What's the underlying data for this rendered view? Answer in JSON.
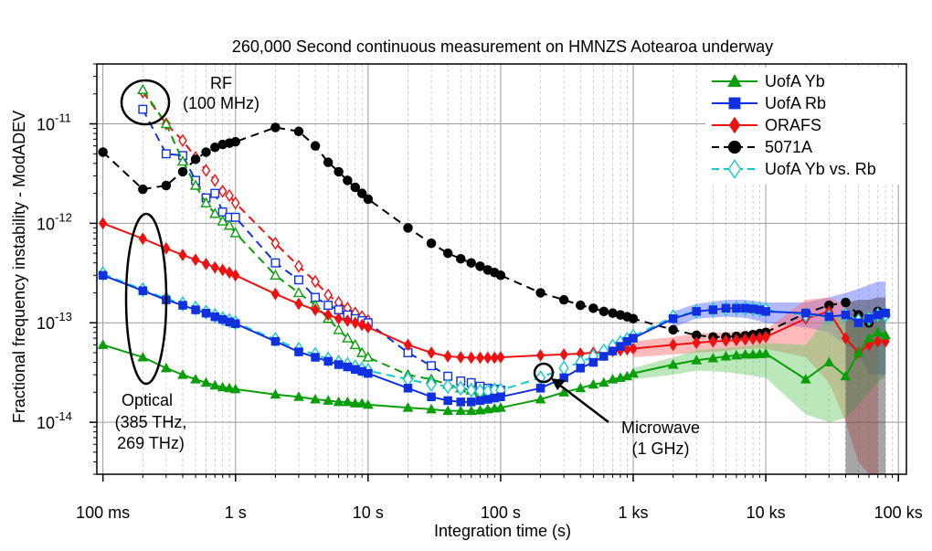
{
  "chart_data": {
    "type": "line",
    "title": "260,000 Second continuous measurement on HMNZS Aotearoa underway",
    "xlabel": "Integration time (s)",
    "ylabel": "Fractional frequency instability - ModADEV",
    "xscale": "log",
    "yscale": "log",
    "xlim": [
      0.09,
      115000
    ],
    "ylim": [
      3e-15,
      4e-11
    ],
    "x_ticks": [
      {
        "value": 0.1,
        "label": "100 ms"
      },
      {
        "value": 1,
        "label": "1 s"
      },
      {
        "value": 10,
        "label": "10 s"
      },
      {
        "value": 100,
        "label": "100 s"
      },
      {
        "value": 1000,
        "label": "1 ks"
      },
      {
        "value": 10000,
        "label": "10 ks"
      },
      {
        "value": 100000,
        "label": "100 ks"
      }
    ],
    "y_ticks": [
      {
        "value": 1e-14,
        "base": "10",
        "exp": "-14"
      },
      {
        "value": 1e-13,
        "base": "10",
        "exp": "-13"
      },
      {
        "value": 1e-12,
        "base": "10",
        "exp": "-12"
      },
      {
        "value": 1e-11,
        "base": "10",
        "exp": "-11"
      }
    ],
    "grid": true,
    "legend_position": "top-right",
    "legend": [
      "UofA Yb",
      "UofA Rb",
      "ORAFS",
      "5071A",
      "UofA Yb vs. Rb"
    ],
    "series": [
      {
        "name": "UofA Yb",
        "color": "#0a9e0a",
        "marker": "triangle",
        "line": "solid",
        "x": [
          0.1,
          0.2,
          0.3,
          0.4,
          0.5,
          0.6,
          0.7,
          0.8,
          0.9,
          1,
          2,
          3,
          4,
          5,
          6,
          7,
          8,
          9,
          10,
          20,
          30,
          40,
          50,
          60,
          70,
          80,
          90,
          100,
          200,
          300,
          400,
          500,
          600,
          700,
          800,
          900,
          1000,
          2000,
          3000,
          4000,
          5000,
          6000,
          7000,
          8000,
          9000,
          10000,
          20000,
          30000,
          40000,
          50000,
          60000,
          70000,
          80000
        ],
        "y": [
          6e-14,
          4.5e-14,
          3.5e-14,
          3e-14,
          2.7e-14,
          2.5e-14,
          2.35e-14,
          2.25e-14,
          2.2e-14,
          2.15e-14,
          1.9e-14,
          1.8e-14,
          1.7e-14,
          1.65e-14,
          1.6e-14,
          1.6e-14,
          1.55e-14,
          1.55e-14,
          1.5e-14,
          1.4e-14,
          1.35e-14,
          1.3e-14,
          1.3e-14,
          1.3e-14,
          1.32e-14,
          1.35e-14,
          1.38e-14,
          1.4e-14,
          1.7e-14,
          2e-14,
          2.2e-14,
          2.4e-14,
          2.5e-14,
          2.7e-14,
          2.8e-14,
          2.9e-14,
          3.1e-14,
          3.8e-14,
          4.2e-14,
          4.4e-14,
          4.6e-14,
          4.7e-14,
          4.8e-14,
          4.8e-14,
          4.85e-14,
          4.9e-14,
          2.7e-14,
          4e-14,
          2.9e-14,
          5e-14,
          7e-14,
          8e-14,
          7.5e-14
        ]
      },
      {
        "name": "UofA Rb",
        "color": "#1030e0",
        "marker": "square",
        "line": "solid",
        "x": [
          0.1,
          0.2,
          0.3,
          0.4,
          0.5,
          0.6,
          0.7,
          0.8,
          0.9,
          1,
          2,
          3,
          4,
          5,
          6,
          7,
          8,
          9,
          10,
          20,
          30,
          40,
          50,
          60,
          70,
          80,
          90,
          100,
          200,
          300,
          400,
          500,
          600,
          700,
          800,
          900,
          1000,
          2000,
          3000,
          4000,
          5000,
          6000,
          7000,
          8000,
          9000,
          10000,
          20000,
          30000,
          40000,
          50000,
          60000,
          70000,
          80000
        ],
        "y": [
          3e-13,
          2.1e-13,
          1.7e-13,
          1.5e-13,
          1.35e-13,
          1.25e-13,
          1.15e-13,
          1.08e-13,
          1.02e-13,
          9.8e-14,
          6.5e-14,
          5.1e-14,
          4.5e-14,
          4.1e-14,
          3.8e-14,
          3.6e-14,
          3.4e-14,
          3.25e-14,
          3.1e-14,
          2.2e-14,
          1.8e-14,
          1.65e-14,
          1.6e-14,
          1.6e-14,
          1.65e-14,
          1.7e-14,
          1.75e-14,
          1.8e-14,
          2.2e-14,
          2.8e-14,
          3.5e-14,
          4e-14,
          4.6e-14,
          5.2e-14,
          5.8e-14,
          6.5e-14,
          7e-14,
          1.1e-13,
          1.3e-13,
          1.35e-13,
          1.4e-13,
          1.4e-13,
          1.4e-13,
          1.38e-13,
          1.35e-13,
          1.3e-13,
          1.25e-13,
          1.15e-13,
          1.2e-13,
          1e-13,
          1.1e-13,
          1.2e-13,
          1.25e-13
        ]
      },
      {
        "name": "ORAFS",
        "color": "#ee1111",
        "marker": "diamond",
        "line": "solid",
        "x": [
          0.1,
          0.2,
          0.3,
          0.4,
          0.5,
          0.6,
          0.7,
          0.8,
          0.9,
          1,
          2,
          3,
          4,
          5,
          6,
          7,
          8,
          9,
          10,
          20,
          30,
          40,
          50,
          60,
          70,
          80,
          90,
          100,
          200,
          300,
          400,
          500,
          600,
          700,
          800,
          900,
          1000,
          2000,
          3000,
          4000,
          5000,
          6000,
          7000,
          8000,
          9000,
          10000,
          20000,
          30000,
          40000,
          50000,
          60000,
          70000,
          80000
        ],
        "y": [
          1e-12,
          7e-13,
          5.6e-13,
          4.8e-13,
          4.3e-13,
          3.9e-13,
          3.6e-13,
          3.4e-13,
          3.2e-13,
          3e-13,
          1.95e-13,
          1.55e-13,
          1.35e-13,
          1.2e-13,
          1.1e-13,
          1.05e-13,
          1e-13,
          9.5e-14,
          9e-14,
          6e-14,
          5e-14,
          4.6e-14,
          4.5e-14,
          4.45e-14,
          4.45e-14,
          4.45e-14,
          4.45e-14,
          4.5e-14,
          4.7e-14,
          4.8e-14,
          4.9e-14,
          5e-14,
          5.1e-14,
          5.2e-14,
          5.3e-14,
          5.4e-14,
          5.5e-14,
          6e-14,
          6.3e-14,
          6.5e-14,
          6.6e-14,
          6.7e-14,
          6.8e-14,
          6.9e-14,
          7e-14,
          7.2e-14,
          1.1e-13,
          1.3e-13,
          7e-14,
          5e-14,
          6e-14,
          6.5e-14,
          6.5e-14
        ]
      },
      {
        "name": "5071A",
        "color": "#000000",
        "marker": "circle",
        "line": "dashed",
        "x": [
          0.1,
          0.2,
          0.3,
          0.4,
          0.5,
          0.6,
          0.7,
          0.8,
          0.9,
          1,
          2,
          3,
          4,
          5,
          6,
          7,
          8,
          9,
          10,
          20,
          30,
          40,
          50,
          60,
          70,
          80,
          90,
          100,
          200,
          300,
          400,
          500,
          600,
          700,
          800,
          900,
          1000,
          2000,
          3000,
          4000,
          5000,
          6000,
          7000,
          8000,
          9000,
          10000,
          20000,
          30000,
          40000,
          50000,
          60000,
          70000,
          80000
        ],
        "y": [
          5.2e-12,
          2.2e-12,
          2.4e-12,
          3.3e-12,
          4.4e-12,
          5.2e-12,
          5.8e-12,
          6.2e-12,
          6.4e-12,
          6.6e-12,
          9.2e-12,
          8.4e-12,
          6e-12,
          4.1e-12,
          3.3e-12,
          2.7e-12,
          2.3e-12,
          2e-12,
          1.75e-12,
          9e-13,
          6.3e-13,
          5e-13,
          4.4e-13,
          4e-13,
          3.7e-13,
          3.4e-13,
          3.2e-13,
          3e-13,
          2e-13,
          1.7e-13,
          1.5e-13,
          1.4e-13,
          1.3e-13,
          1.25e-13,
          1.2e-13,
          1.15e-13,
          1.1e-13,
          8.5e-14,
          7.5e-14,
          7.2e-14,
          7.2e-14,
          7.3e-14,
          7.4e-14,
          7.6e-14,
          7.8e-14,
          8e-14,
          1.25e-13,
          1.5e-13,
          1.6e-13,
          1.2e-13,
          1e-13,
          1.3e-13,
          1.2e-13
        ]
      },
      {
        "name": "UofA Yb vs. Rb",
        "color": "#12c8d0",
        "marker": "diamond-open",
        "line": "dashed",
        "x": [
          0.1,
          0.2,
          0.3,
          0.4,
          0.5,
          0.6,
          0.7,
          0.8,
          0.9,
          1,
          2,
          3,
          4,
          5,
          6,
          7,
          8,
          9,
          10,
          20,
          30,
          40,
          50,
          60,
          70,
          80,
          90,
          100,
          200,
          300,
          400,
          500,
          600,
          700,
          800,
          900,
          1000,
          2000,
          3000,
          4000,
          5000,
          6000,
          7000,
          8000,
          9000,
          10000,
          20000,
          30000,
          40000,
          50000,
          60000,
          70000,
          80000
        ],
        "y": [
          3.1e-13,
          2.15e-13,
          1.75e-13,
          1.55e-13,
          1.4e-13,
          1.28e-13,
          1.18e-13,
          1.1e-13,
          1.05e-13,
          1e-13,
          6.8e-14,
          5.4e-14,
          4.8e-14,
          4.3e-14,
          4e-14,
          3.8e-14,
          3.6e-14,
          3.4e-14,
          3.3e-14,
          2.7e-14,
          2.4e-14,
          2.3e-14,
          2.2e-14,
          2.1e-14,
          2.05e-14,
          2.05e-14,
          2.1e-14,
          2.1e-14,
          2.8e-14,
          3.5e-14,
          4e-14,
          4.6e-14,
          5.2e-14,
          5.8e-14,
          6.3e-14,
          6.8e-14,
          7.3e-14,
          1.15e-13,
          1.3e-13,
          1.35e-13,
          1.38e-13,
          1.4e-13,
          1.4e-13,
          1.38e-13,
          1.36e-13,
          1.35e-13,
          1.2e-13,
          1.15e-13,
          1.2e-13,
          1.05e-13,
          1.1e-13,
          1.2e-13,
          1.2e-13
        ]
      },
      {
        "name": "UofA Yb (dashed)",
        "color": "#0a9e0a",
        "marker": "triangle-open",
        "line": "dashed",
        "in_legend": false,
        "x": [
          0.2,
          0.3,
          0.4,
          0.5,
          0.6,
          0.7,
          0.8,
          0.9,
          1,
          2,
          3,
          4,
          5,
          6,
          7,
          8,
          9,
          10,
          20,
          30,
          40,
          50,
          60,
          70,
          80,
          90,
          100
        ],
        "y": [
          2.2e-11,
          1e-11,
          4.2e-12,
          2.4e-12,
          1.6e-12,
          1.25e-12,
          1.05e-12,
          9.5e-13,
          8e-13,
          3e-13,
          2e-13,
          1.5e-13,
          1.1e-13,
          8.5e-14,
          7e-14,
          6e-14,
          5e-14,
          4.5e-14,
          3e-14,
          2.7e-14,
          2.4e-14,
          2.2e-14,
          2.1e-14,
          2e-14,
          2e-14,
          2e-14,
          2e-14
        ]
      },
      {
        "name": "UofA Rb (dashed)",
        "color": "#1030e0",
        "marker": "square-open",
        "line": "dashed",
        "in_legend": false,
        "x": [
          0.2,
          0.3,
          0.4,
          0.5,
          0.6,
          0.7,
          0.8,
          0.9,
          1,
          2,
          3,
          4,
          5,
          6,
          7,
          8,
          9,
          10,
          20,
          30,
          40,
          50,
          60,
          70,
          80,
          90,
          100
        ],
        "y": [
          1.4e-11,
          5e-12,
          4.8e-12,
          2.7e-12,
          1.8e-12,
          2e-12,
          1.3e-12,
          1.15e-12,
          1.15e-12,
          4e-13,
          2.7e-13,
          1.8e-13,
          1.5e-13,
          1.35e-13,
          1.2e-13,
          1.1e-13,
          1.05e-13,
          1e-13,
          5e-14,
          3.7e-14,
          2.9e-14,
          2.6e-14,
          2.5e-14,
          2.3e-14,
          2.2e-14,
          2.15e-14,
          2.1e-14
        ]
      },
      {
        "name": "ORAFS (dashed)",
        "color": "#ee1111",
        "marker": "diamond-open",
        "line": "dashed",
        "in_legend": false,
        "x": [
          0.2,
          0.3,
          0.4,
          0.5,
          0.6,
          0.7,
          0.8,
          0.9,
          1,
          2,
          3,
          4,
          5,
          6,
          7,
          8,
          9,
          10
        ],
        "y": [
          2.1e-11,
          1e-11,
          6.8e-12,
          4.6e-12,
          3.4e-12,
          2.7e-12,
          2.1e-12,
          1.9e-12,
          1.6e-12,
          6.3e-13,
          3.7e-13,
          2.6e-13,
          1.9e-13,
          1.6e-13,
          1.4e-13,
          1.25e-13,
          1.15e-13,
          1.05e-13
        ]
      }
    ],
    "bands": [
      {
        "name": "UofA Rb",
        "color": "#5566ff",
        "x": [
          2000,
          3000,
          5000,
          7000,
          10000,
          20000,
          30000,
          40000,
          50000,
          60000,
          70000,
          80000
        ],
        "lo": [
          9e-14,
          1.1e-13,
          1.15e-13,
          1.12e-13,
          1e-13,
          9e-14,
          8e-14,
          6e-14,
          5e-14,
          3e-14,
          3e-14,
          3e-14
        ],
        "hi": [
          1.3e-13,
          1.55e-13,
          1.7e-13,
          1.7e-13,
          1.6e-13,
          1.6e-13,
          1.8e-13,
          2e-13,
          2.2e-13,
          2.4e-13,
          2.6e-13,
          2.6e-13
        ]
      },
      {
        "name": "ORAFS",
        "color": "#ff6666",
        "x": [
          1000,
          2000,
          3000,
          5000,
          7000,
          10000,
          20000,
          30000,
          40000,
          50000,
          60000,
          70000
        ],
        "lo": [
          4.5e-14,
          4.8e-14,
          5e-14,
          5.2e-14,
          5.5e-14,
          5.5e-14,
          4.5e-14,
          2.5e-14,
          1e-14,
          4e-15,
          3e-15,
          3e-15
        ],
        "hi": [
          6.5e-14,
          7.2e-14,
          7.8e-14,
          8e-14,
          8.3e-14,
          8.5e-14,
          1.7e-13,
          1.8e-13,
          1.5e-13,
          1e-13,
          1e-13,
          1.1e-13
        ]
      },
      {
        "name": "UofA Yb",
        "color": "#66cc66",
        "x": [
          1000,
          2000,
          3000,
          5000,
          7000,
          10000,
          20000,
          30000,
          40000,
          50000,
          60000,
          70000,
          80000
        ],
        "lo": [
          2.7e-14,
          3e-14,
          3.3e-14,
          3.2e-14,
          3e-14,
          2.8e-14,
          1.2e-14,
          1e-14,
          1.1e-14,
          1.5e-14,
          2e-14,
          2.5e-14,
          3e-14
        ],
        "hi": [
          3.5e-14,
          4.5e-14,
          5.3e-14,
          5.6e-14,
          5.8e-14,
          6.3e-14,
          6e-14,
          1.2e-13,
          1.1e-13,
          1.1e-13,
          1.1e-13,
          1.1e-13,
          1.1e-13
        ]
      },
      {
        "name": "5071A",
        "color": "#3a3a3a",
        "x": [
          40000,
          50000,
          60000,
          70000,
          80000
        ],
        "lo": [
          3e-15,
          3e-15,
          3e-15,
          3e-15,
          3e-15
        ],
        "hi": [
          1.6e-13,
          1.7e-13,
          1.7e-13,
          1.8e-13,
          1.8e-13
        ]
      }
    ],
    "annotations": [
      {
        "label": "RF",
        "label2": "(100 MHz)"
      },
      {
        "label": "Optical",
        "label2": "(385 THz,",
        "label3": "269 THz)"
      },
      {
        "label": "Microwave",
        "label2": "(1 GHz)"
      }
    ]
  }
}
